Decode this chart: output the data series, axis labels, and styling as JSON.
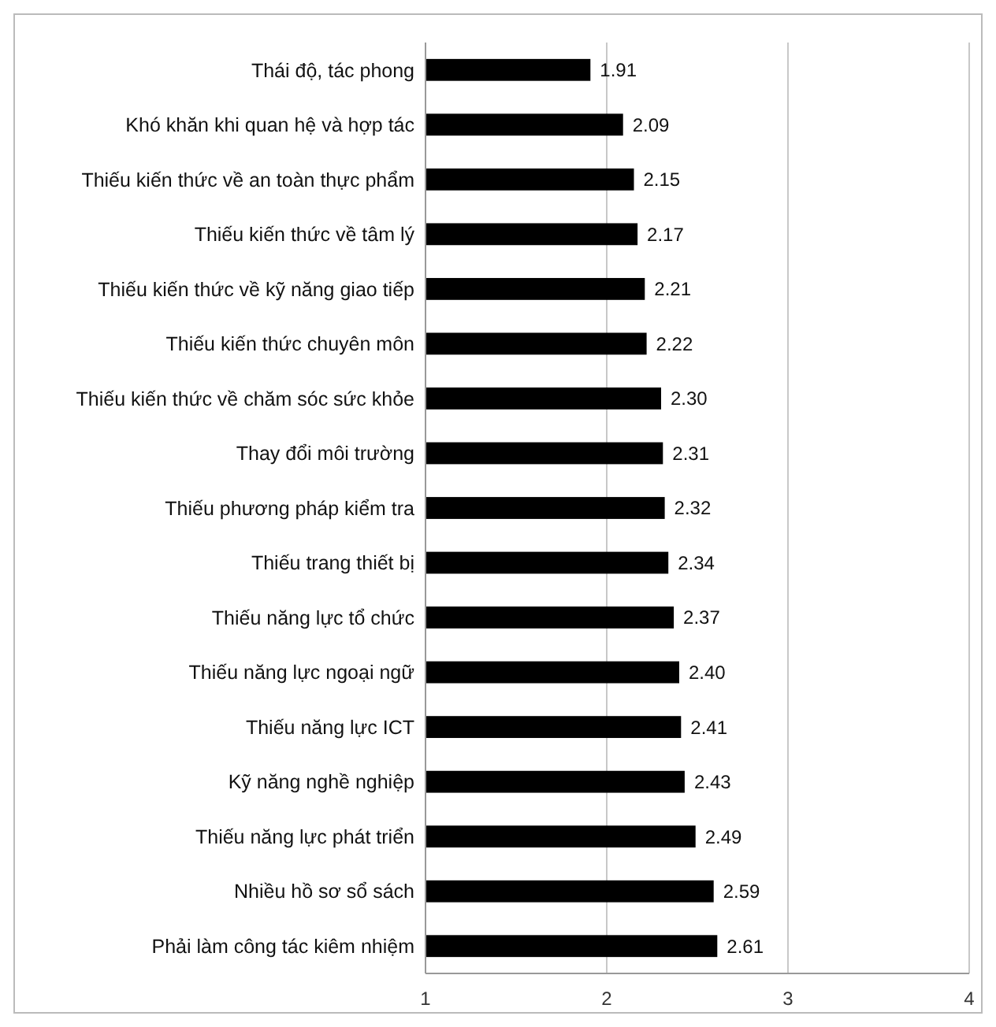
{
  "chart_data": {
    "type": "bar",
    "orientation": "horizontal",
    "categories": [
      "Thái độ, tác phong",
      "Khó khăn khi quan hệ và hợp tác",
      "Thiếu kiến thức về an toàn thực phẩm",
      "Thiếu kiến thức về tâm lý",
      "Thiếu kiến thức về kỹ năng giao tiếp",
      "Thiếu kiến thức chuyên môn",
      "Thiếu kiến thức về chăm sóc sức khỏe",
      "Thay đổi môi trường",
      "Thiếu phương pháp kiểm tra",
      "Thiếu trang thiết bị",
      "Thiếu năng lực tổ chức",
      "Thiếu năng lực ngoại ngữ",
      "Thiếu năng lực ICT",
      "Kỹ năng nghề nghiệp",
      "Thiếu năng lực phát triển",
      "Nhiều hồ sơ sổ sách",
      "Phải làm công tác kiêm nhiệm"
    ],
    "values": [
      1.91,
      2.09,
      2.15,
      2.17,
      2.21,
      2.22,
      2.3,
      2.31,
      2.32,
      2.34,
      2.37,
      2.4,
      2.41,
      2.43,
      2.49,
      2.59,
      2.61
    ],
    "value_labels": [
      "1.91",
      "2.09",
      "2.15",
      "2.17",
      "2.21",
      "2.22",
      "2.30",
      "2.31",
      "2.32",
      "2.34",
      "2.37",
      "2.40",
      "2.41",
      "2.43",
      "2.49",
      "2.59",
      "2.61"
    ],
    "color": "#000000",
    "xlim": [
      1,
      4
    ],
    "xticks": [
      1,
      2,
      3,
      4
    ],
    "grid": "x"
  }
}
